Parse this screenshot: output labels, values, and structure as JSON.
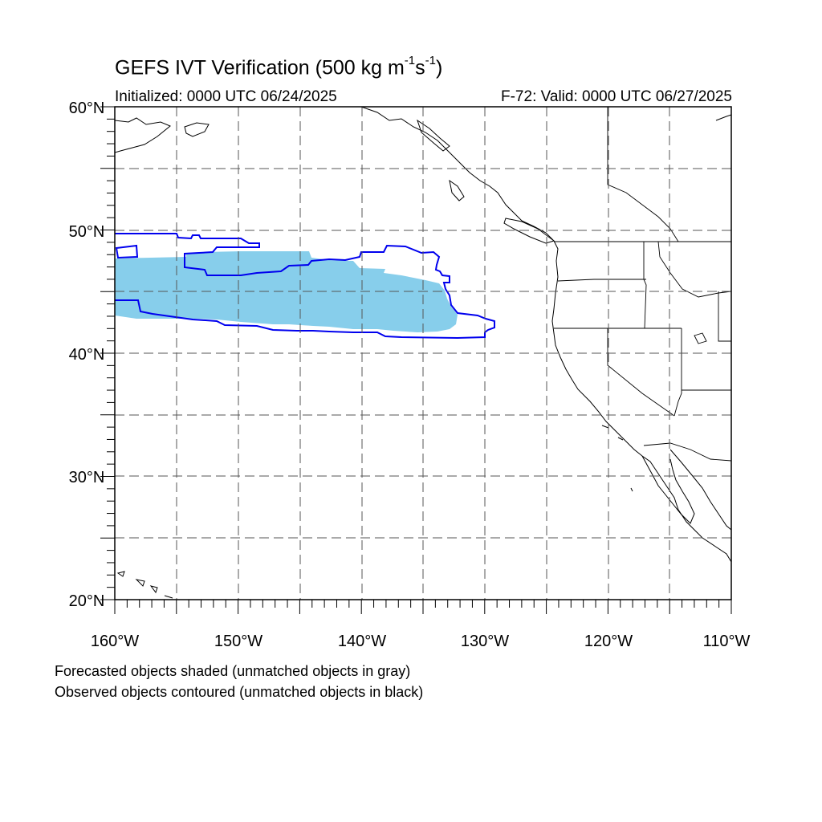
{
  "title": {
    "text": "GEFS IVT Verification (500 kg m",
    "exp1": "-1",
    "mid": "s",
    "exp2": "-1",
    "end": ")"
  },
  "subtitle": {
    "left": "Initialized: 0000 UTC 06/24/2025",
    "right": "F-72: Valid: 0000 UTC 06/27/2025"
  },
  "axes": {
    "lat_labels": [
      "60°N",
      "50°N",
      "40°N",
      "30°N",
      "20°N"
    ],
    "lon_labels": [
      "160°W",
      "150°W",
      "140°W",
      "130°W",
      "120°W",
      "110°W"
    ],
    "lat_range": [
      20,
      60
    ],
    "lon_range": [
      -160,
      -110
    ],
    "grid": true
  },
  "colors": {
    "forecast_fill": "#87ceeb",
    "observed_contour": "#0000ee",
    "coast": "#000000"
  },
  "footnotes": {
    "line1": "Forecasted objects shaded (unmatched objects in gray)",
    "line2": "Observed objects contoured (unmatched objects in black)"
  }
}
